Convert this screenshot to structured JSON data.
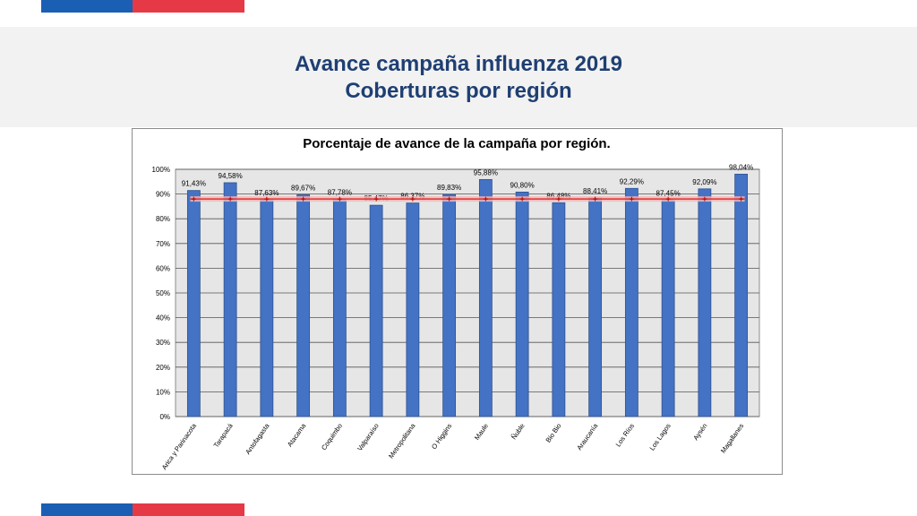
{
  "slide": {
    "title_line1": "Avance campaña influenza 2019",
    "title_line2": "Coberturas por región"
  },
  "colors": {
    "accent_blue": "#1a5fb4",
    "accent_red": "#e63946",
    "title_color": "#1f3f73",
    "bar_color": "#4472c4",
    "line_color": "#e03030"
  },
  "chart_data": {
    "type": "bar",
    "title": "Porcentaje de avance de la campaña por región.",
    "categories": [
      "Arica y Parinacota",
      "Tarapacá",
      "Antofagasta",
      "Atacama",
      "Coquimbo",
      "Valparaíso",
      "Metropolitana",
      "O Higgins",
      "Maule",
      "Ñuble",
      "Bio Bio",
      "Araucanía",
      "Los Ríos",
      "Los Lagos",
      "Aysén",
      "Magallanes"
    ],
    "values": [
      91.43,
      94.58,
      87.63,
      89.67,
      87.78,
      85.47,
      86.37,
      89.83,
      95.88,
      90.8,
      86.48,
      88.41,
      92.29,
      87.45,
      92.09,
      98.04
    ],
    "value_labels": [
      "91,43%",
      "94,58%",
      "87,63%",
      "89,67%",
      "87,78%",
      "85,47%",
      "86,37%",
      "89,83%",
      "95,88%",
      "90,80%",
      "86,48%",
      "88,41%",
      "92,29%",
      "87,45%",
      "92,09%",
      "98,04%"
    ],
    "reference_line": 88,
    "ylim": [
      0,
      100
    ],
    "yticks": [
      0,
      10,
      20,
      30,
      40,
      50,
      60,
      70,
      80,
      90,
      100
    ],
    "ytick_labels": [
      "0%",
      "10%",
      "20%",
      "30%",
      "40%",
      "50%",
      "60%",
      "70%",
      "80%",
      "90%",
      "100%"
    ],
    "grid": true
  }
}
